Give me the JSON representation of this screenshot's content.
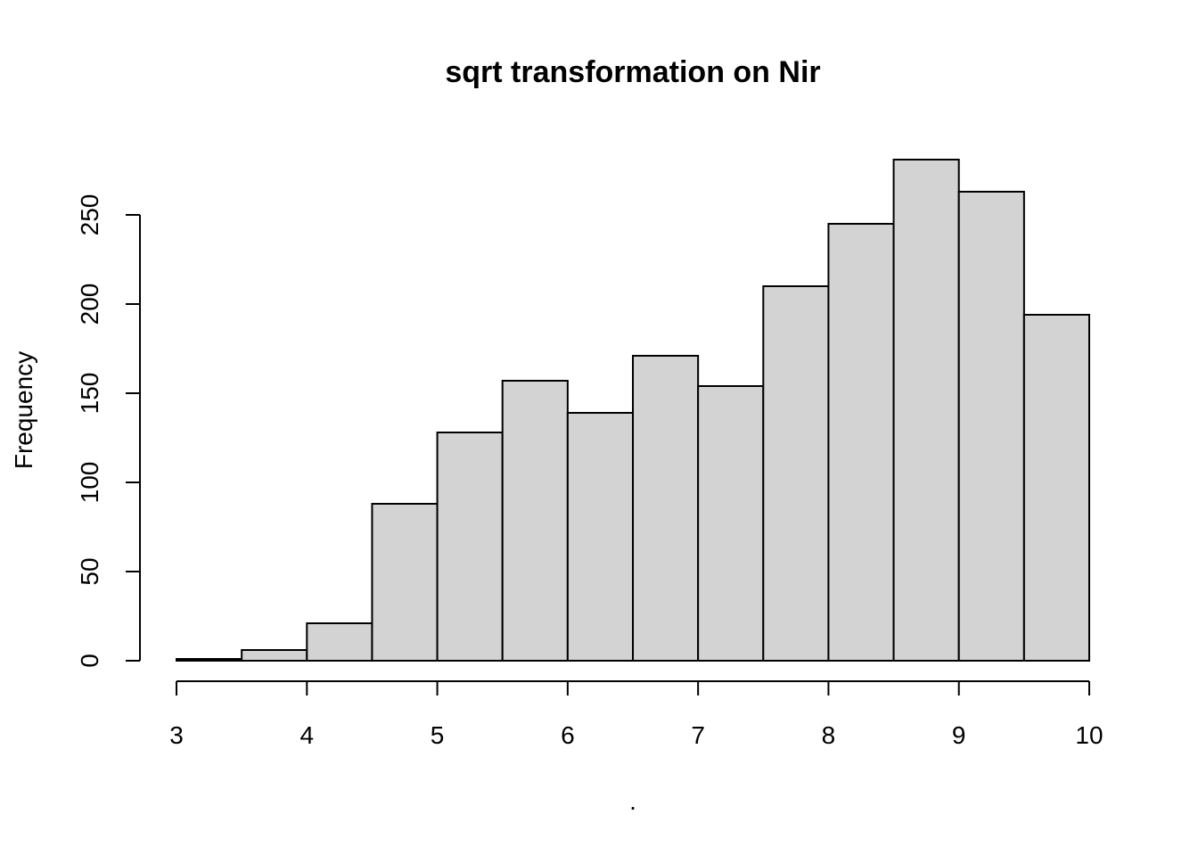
{
  "chart_data": {
    "type": "bar",
    "title": "sqrt transformation on Nir",
    "xlabel": ".",
    "ylabel": "Frequency",
    "xlim": [
      3,
      10
    ],
    "ylim": [
      0,
      281
    ],
    "bins": [
      {
        "x0": 3.0,
        "x1": 3.5,
        "count": 1
      },
      {
        "x0": 3.5,
        "x1": 4.0,
        "count": 6
      },
      {
        "x0": 4.0,
        "x1": 4.5,
        "count": 21
      },
      {
        "x0": 4.5,
        "x1": 5.0,
        "count": 88
      },
      {
        "x0": 5.0,
        "x1": 5.5,
        "count": 128
      },
      {
        "x0": 5.5,
        "x1": 6.0,
        "count": 157
      },
      {
        "x0": 6.0,
        "x1": 6.5,
        "count": 139
      },
      {
        "x0": 6.5,
        "x1": 7.0,
        "count": 171
      },
      {
        "x0": 7.0,
        "x1": 7.5,
        "count": 154
      },
      {
        "x0": 7.5,
        "x1": 8.0,
        "count": 210
      },
      {
        "x0": 8.0,
        "x1": 8.5,
        "count": 245
      },
      {
        "x0": 8.5,
        "x1": 9.0,
        "count": 281
      },
      {
        "x0": 9.0,
        "x1": 9.5,
        "count": 263
      },
      {
        "x0": 9.5,
        "x1": 10.0,
        "count": 194
      }
    ],
    "x_ticks": [
      3,
      4,
      5,
      6,
      7,
      8,
      9,
      10
    ],
    "y_ticks": [
      0,
      50,
      100,
      150,
      200,
      250
    ],
    "grid": false,
    "legend": "none"
  }
}
